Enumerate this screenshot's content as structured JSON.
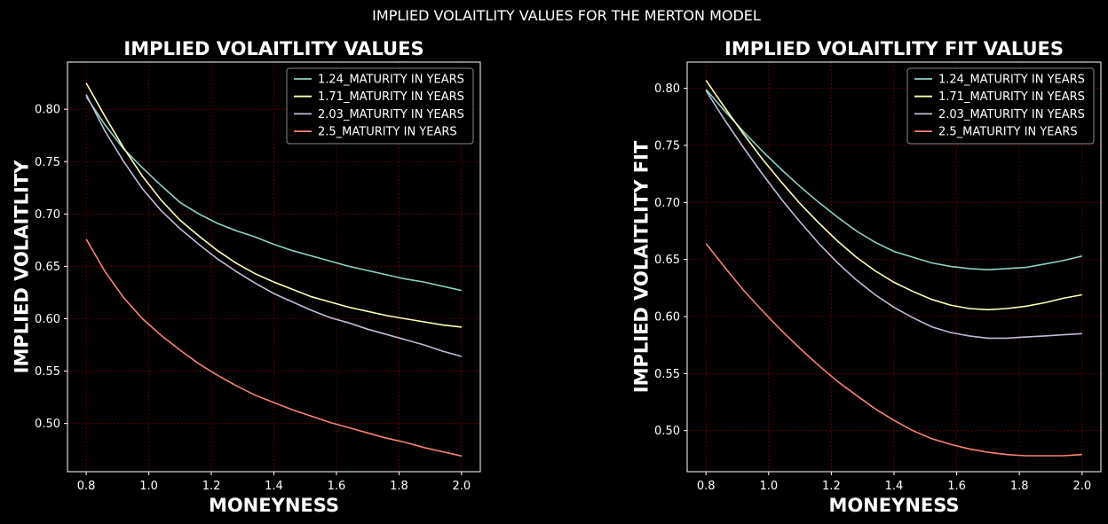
{
  "suptitle": "IMPLIED VOLAITLITY VALUES FOR THE MERTON MODEL",
  "colors": {
    "background": "#000000",
    "grid": "#8b0000",
    "series": [
      "#8dd3c7",
      "#feffb3",
      "#bfbbd9",
      "#fa8174"
    ]
  },
  "chart_data": [
    {
      "type": "line",
      "title": "IMPLIED VOLAITLITY VALUES",
      "xlabel": "MONEYNESS",
      "ylabel": "IMPLIED VOLAITLITY",
      "xlim": [
        0.74,
        2.06
      ],
      "ylim": [
        0.454,
        0.845
      ],
      "xticks": [
        0.8,
        1.0,
        1.2,
        1.4,
        1.6,
        1.8,
        2.0
      ],
      "xtick_labels": [
        "0.8",
        "1.0",
        "1.2",
        "1.4",
        "1.6",
        "1.8",
        "2.0"
      ],
      "yticks": [
        0.5,
        0.55,
        0.6,
        0.65,
        0.7,
        0.75,
        0.8
      ],
      "ytick_labels": [
        "0.50",
        "0.55",
        "0.60",
        "0.65",
        "0.70",
        "0.75",
        "0.80"
      ],
      "grid": true,
      "legend_position": "top-right",
      "x": [
        0.8,
        0.86,
        0.92,
        0.98,
        1.04,
        1.1,
        1.16,
        1.22,
        1.28,
        1.34,
        1.4,
        1.46,
        1.52,
        1.58,
        1.64,
        1.7,
        1.76,
        1.82,
        1.88,
        1.94,
        2.0
      ],
      "series": [
        {
          "name": "1.24_MATURITY IN YEARS",
          "values": [
            0.812,
            0.785,
            0.762,
            0.744,
            0.727,
            0.711,
            0.7,
            0.691,
            0.684,
            0.678,
            0.671,
            0.665,
            0.66,
            0.655,
            0.65,
            0.646,
            0.642,
            0.638,
            0.635,
            0.631,
            0.627
          ]
        },
        {
          "name": "1.71_MATURITY IN YEARS",
          "values": [
            0.825,
            0.793,
            0.763,
            0.736,
            0.713,
            0.694,
            0.679,
            0.665,
            0.653,
            0.643,
            0.635,
            0.628,
            0.621,
            0.616,
            0.611,
            0.607,
            0.603,
            0.6,
            0.597,
            0.594,
            0.592
          ]
        },
        {
          "name": "2.03_MATURITY IN YEARS",
          "values": [
            0.814,
            0.779,
            0.75,
            0.724,
            0.703,
            0.686,
            0.671,
            0.657,
            0.645,
            0.634,
            0.624,
            0.616,
            0.608,
            0.601,
            0.596,
            0.59,
            0.585,
            0.58,
            0.575,
            0.569,
            0.564
          ]
        },
        {
          "name": "2.5_MATURITY IN YEARS",
          "values": [
            0.676,
            0.645,
            0.62,
            0.6,
            0.584,
            0.57,
            0.557,
            0.546,
            0.536,
            0.527,
            0.52,
            0.513,
            0.507,
            0.501,
            0.496,
            0.491,
            0.486,
            0.482,
            0.477,
            0.473,
            0.469
          ]
        }
      ]
    },
    {
      "type": "line",
      "title": "IMPLIED VOLAITLITY FIT  VALUES",
      "xlabel": "MONEYNESS",
      "ylabel": "IMPLIED VOLAITLITY FIT",
      "xlim": [
        0.74,
        2.06
      ],
      "ylim": [
        0.464,
        0.823
      ],
      "xticks": [
        0.8,
        1.0,
        1.2,
        1.4,
        1.6,
        1.8,
        2.0
      ],
      "xtick_labels": [
        "0.8",
        "1.0",
        "1.2",
        "1.4",
        "1.6",
        "1.8",
        "2.0"
      ],
      "yticks": [
        0.5,
        0.55,
        0.6,
        0.65,
        0.7,
        0.75,
        0.8
      ],
      "ytick_labels": [
        "0.50",
        "0.55",
        "0.60",
        "0.65",
        "0.70",
        "0.75",
        "0.80"
      ],
      "grid": true,
      "legend_position": "top-right",
      "x": [
        0.8,
        0.86,
        0.92,
        0.98,
        1.04,
        1.1,
        1.16,
        1.22,
        1.28,
        1.34,
        1.4,
        1.46,
        1.52,
        1.58,
        1.64,
        1.7,
        1.76,
        1.82,
        1.88,
        1.94,
        2.0
      ],
      "series": [
        {
          "name": "1.24_MATURITY IN YEARS",
          "values": [
            0.799,
            0.78,
            0.762,
            0.745,
            0.729,
            0.714,
            0.7,
            0.687,
            0.675,
            0.665,
            0.657,
            0.652,
            0.647,
            0.644,
            0.642,
            0.641,
            0.642,
            0.643,
            0.646,
            0.649,
            0.653
          ]
        },
        {
          "name": "1.71_MATURITY IN YEARS",
          "values": [
            0.807,
            0.783,
            0.76,
            0.738,
            0.718,
            0.699,
            0.682,
            0.666,
            0.652,
            0.64,
            0.63,
            0.622,
            0.615,
            0.61,
            0.607,
            0.606,
            0.607,
            0.609,
            0.612,
            0.616,
            0.619
          ]
        },
        {
          "name": "2.03_MATURITY IN YEARS",
          "values": [
            0.798,
            0.772,
            0.748,
            0.725,
            0.703,
            0.683,
            0.664,
            0.647,
            0.632,
            0.619,
            0.608,
            0.599,
            0.591,
            0.586,
            0.583,
            0.581,
            0.581,
            0.582,
            0.583,
            0.584,
            0.585
          ]
        },
        {
          "name": "2.5_MATURITY IN YEARS",
          "values": [
            0.664,
            0.643,
            0.623,
            0.605,
            0.588,
            0.572,
            0.557,
            0.543,
            0.531,
            0.519,
            0.509,
            0.5,
            0.493,
            0.488,
            0.484,
            0.481,
            0.479,
            0.478,
            0.478,
            0.478,
            0.479
          ]
        }
      ]
    }
  ]
}
